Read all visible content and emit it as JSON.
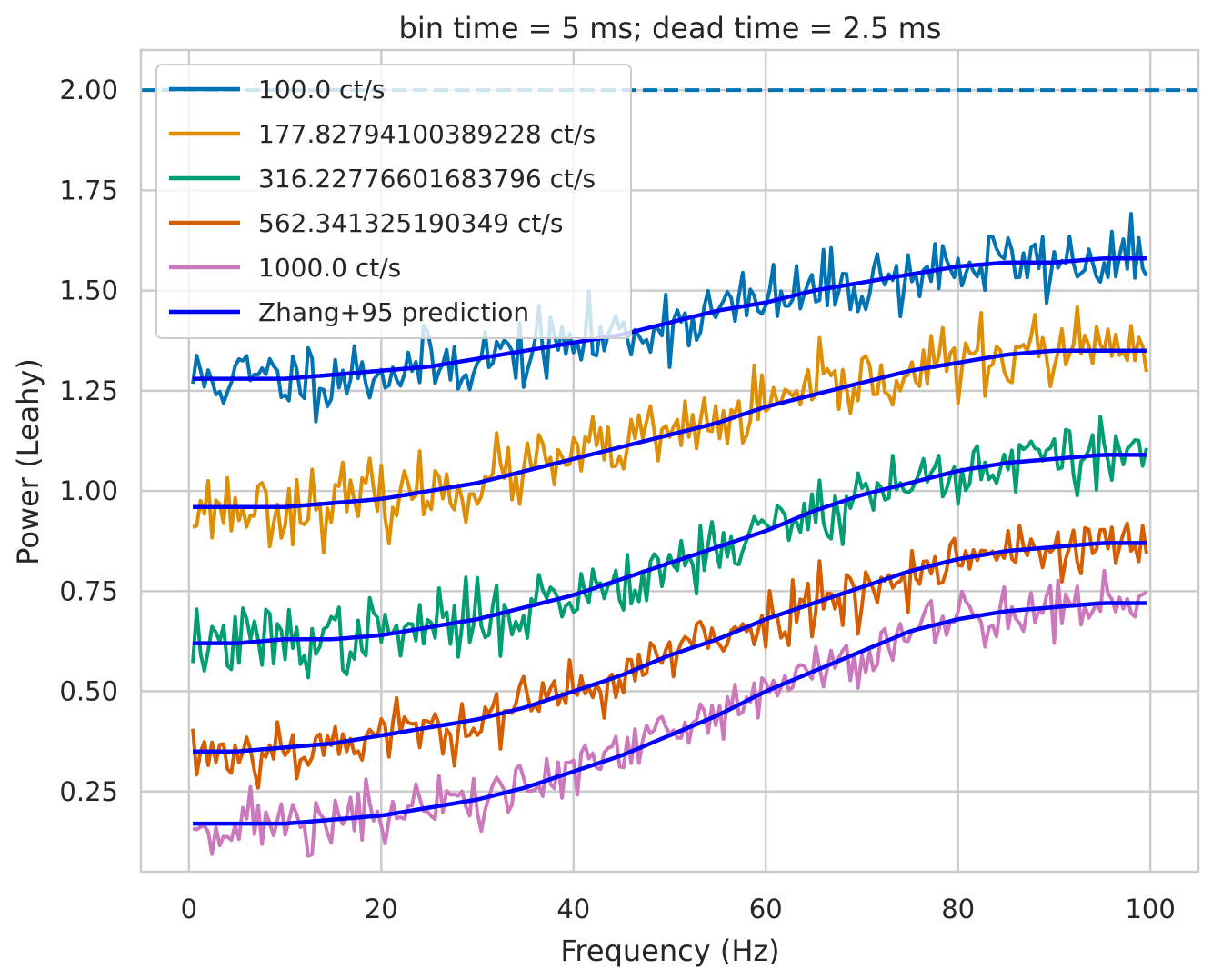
{
  "chart_data": {
    "type": "line",
    "title": "bin time = 5 ms; dead time = 2.5 ms",
    "xlabel": "Frequency (Hz)",
    "ylabel": "Power (Leahy)",
    "xlim": [
      -5,
      105
    ],
    "ylim": [
      0.05,
      2.1
    ],
    "xticks": [
      0,
      20,
      40,
      60,
      80,
      100
    ],
    "xtick_labels": [
      "0",
      "20",
      "40",
      "60",
      "80",
      "100"
    ],
    "yticks": [
      0.25,
      0.5,
      0.75,
      1.0,
      1.25,
      1.5,
      1.75,
      2.0
    ],
    "ytick_labels": [
      "0.25",
      "0.50",
      "0.75",
      "1.00",
      "1.25",
      "1.50",
      "1.75",
      "2.00"
    ],
    "grid": true,
    "legend_position": "upper-left",
    "reference_line": {
      "y": 2.0,
      "style": "dashed",
      "color": "#0173b2"
    },
    "x_start": 0.4,
    "x_step": 0.4,
    "series": [
      {
        "name": "100.0 ct/s",
        "color": "#0173b2",
        "model": [
          1.28,
          1.28,
          1.28,
          1.29,
          1.3,
          1.31,
          1.33,
          1.35,
          1.37,
          1.39,
          1.42,
          1.45,
          1.47,
          1.5,
          1.52,
          1.54,
          1.56,
          1.57,
          1.57,
          1.58,
          1.58
        ],
        "noise": 0.045,
        "seed": 11
      },
      {
        "name": "177.82794100389228 ct/s",
        "color": "#de8f05",
        "model": [
          0.96,
          0.96,
          0.96,
          0.97,
          0.98,
          1.0,
          1.02,
          1.05,
          1.08,
          1.11,
          1.14,
          1.17,
          1.21,
          1.24,
          1.27,
          1.3,
          1.32,
          1.34,
          1.35,
          1.35,
          1.35
        ],
        "noise": 0.045,
        "seed": 23
      },
      {
        "name": "316.22776601683796 ct/s",
        "color": "#029e73",
        "model": [
          0.62,
          0.62,
          0.63,
          0.63,
          0.64,
          0.66,
          0.68,
          0.71,
          0.74,
          0.78,
          0.82,
          0.86,
          0.9,
          0.95,
          0.99,
          1.02,
          1.05,
          1.07,
          1.08,
          1.09,
          1.09
        ],
        "noise": 0.045,
        "seed": 37
      },
      {
        "name": "562.341325190349 ct/s",
        "color": "#d55e00",
        "model": [
          0.35,
          0.35,
          0.36,
          0.37,
          0.39,
          0.41,
          0.43,
          0.46,
          0.5,
          0.54,
          0.59,
          0.63,
          0.68,
          0.72,
          0.76,
          0.8,
          0.83,
          0.85,
          0.86,
          0.87,
          0.87
        ],
        "noise": 0.04,
        "seed": 53
      },
      {
        "name": "1000.0 ct/s",
        "color": "#cc78bc",
        "model": [
          0.17,
          0.17,
          0.17,
          0.18,
          0.19,
          0.21,
          0.23,
          0.26,
          0.3,
          0.34,
          0.39,
          0.44,
          0.5,
          0.55,
          0.6,
          0.65,
          0.68,
          0.7,
          0.71,
          0.72,
          0.72
        ],
        "noise": 0.04,
        "seed": 71
      }
    ],
    "prediction": {
      "name": "Zhang+95 prediction",
      "color": "#0000ff",
      "x": [
        0.4,
        5,
        10,
        15,
        20,
        25,
        30,
        35,
        40,
        45,
        50,
        55,
        60,
        65,
        70,
        75,
        80,
        85,
        90,
        95,
        99.6
      ]
    }
  }
}
